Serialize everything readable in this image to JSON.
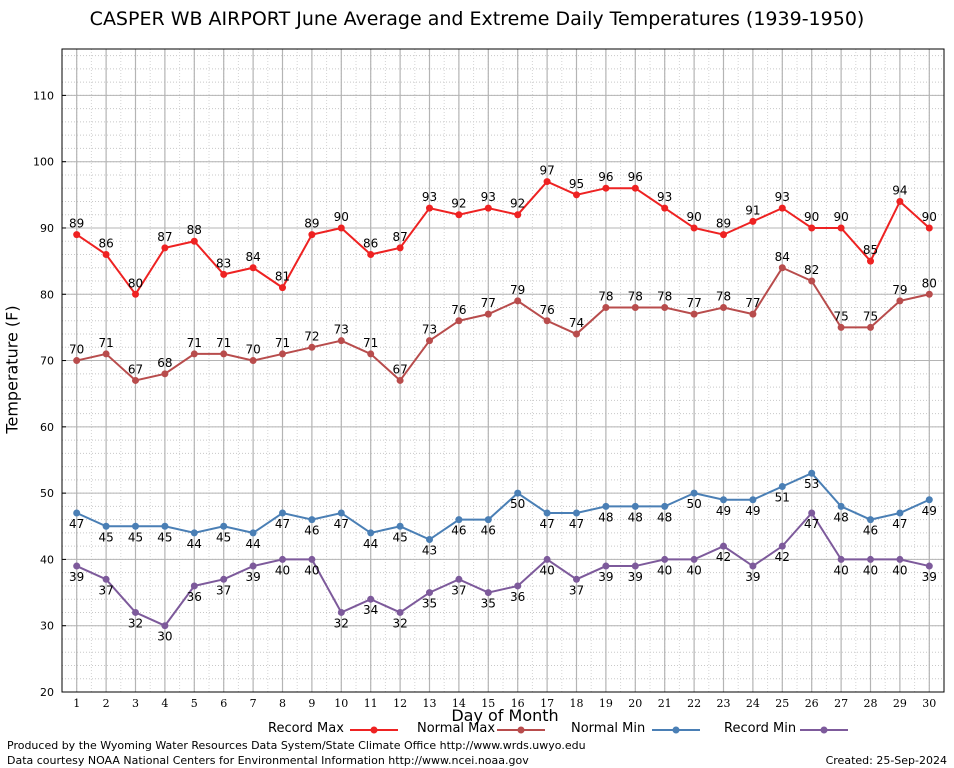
{
  "chart_data": {
    "type": "line",
    "title": "CASPER WB AIRPORT June Average and Extreme Daily Temperatures (1939-1950)",
    "xlabel": "Day of Month",
    "ylabel": "Temperature (F)",
    "ylim": [
      20,
      117
    ],
    "yticks": [
      20,
      30,
      40,
      50,
      60,
      70,
      80,
      90,
      100,
      110
    ],
    "x": [
      1,
      2,
      3,
      4,
      5,
      6,
      7,
      8,
      9,
      10,
      11,
      12,
      13,
      14,
      15,
      16,
      17,
      18,
      19,
      20,
      21,
      22,
      23,
      24,
      25,
      26,
      27,
      28,
      29,
      30
    ],
    "grid": true,
    "legend_position": "bottom",
    "series": [
      {
        "name": "Record Max",
        "color": "#ee2222",
        "values": [
          89,
          86,
          80,
          87,
          88,
          83,
          84,
          81,
          89,
          90,
          86,
          87,
          93,
          92,
          93,
          92,
          97,
          95,
          96,
          96,
          93,
          90,
          89,
          91,
          93,
          90,
          90,
          85,
          94,
          90
        ]
      },
      {
        "name": "Normal Max",
        "color": "#b84c4c",
        "values": [
          70,
          71,
          67,
          68,
          71,
          71,
          70,
          71,
          72,
          73,
          71,
          67,
          73,
          76,
          77,
          79,
          76,
          74,
          78,
          78,
          78,
          77,
          78,
          77,
          84,
          82,
          75,
          75,
          79,
          80
        ]
      },
      {
        "name": "Normal Min",
        "color": "#4a7fb5",
        "values": [
          47,
          45,
          45,
          45,
          44,
          45,
          44,
          47,
          46,
          47,
          44,
          45,
          43,
          46,
          46,
          50,
          47,
          47,
          48,
          48,
          48,
          50,
          49,
          49,
          51,
          53,
          48,
          46,
          47,
          49
        ]
      },
      {
        "name": "Record Min",
        "color": "#7d5a9b",
        "values": [
          39,
          37,
          32,
          30,
          36,
          37,
          39,
          40,
          40,
          32,
          34,
          32,
          35,
          37,
          35,
          36,
          40,
          37,
          39,
          39,
          40,
          40,
          42,
          39,
          42,
          47,
          40,
          40,
          40,
          39
        ]
      }
    ]
  },
  "footer": {
    "produced_by": "Produced by the Wyoming Water Resources Data System/State Climate Office http://www.wrds.uwyo.edu",
    "courtesy": "Data courtesy NOAA National Centers for Environmental Information http://www.ncei.noaa.gov",
    "created": "Created:  25-Sep-2024"
  }
}
